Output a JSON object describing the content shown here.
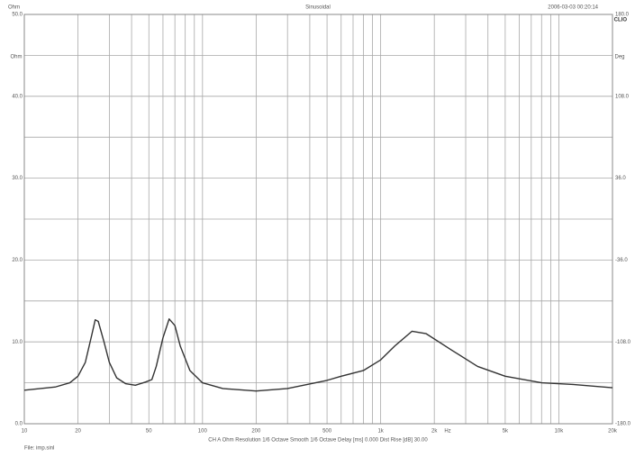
{
  "chart_data": {
    "type": "line",
    "title": "Sinusoidal",
    "timestamp": "2006-03-03 00:20:14",
    "brand": "CLIO",
    "y_label": "Ohm",
    "y2_label": "Deg",
    "x_label": "Hz",
    "footer": "CH A   Ohm   Resolution 1/6 Octave   Smooth 1/6 Octave   Delay [ms] 0.000   Dist Rise [dB] 30.00",
    "file": "File: imp.sinl",
    "log_x": true,
    "grid": true,
    "xlim": [
      10,
      20000
    ],
    "xticks": [
      10,
      20,
      50,
      100,
      200,
      500,
      {
        "value": 1000,
        "label": "1k"
      },
      {
        "value": 2000,
        "label": "2k"
      },
      {
        "value": 5000,
        "label": "5k"
      },
      {
        "value": 10000,
        "label": "10k"
      },
      {
        "value": 20000,
        "label": "20k"
      }
    ],
    "ylim": [
      0,
      50
    ],
    "yticks": [
      {
        "value": 0,
        "label": "0.0"
      },
      {
        "value": 10,
        "label": "10.0"
      },
      {
        "value": 20,
        "label": "20.0"
      },
      {
        "value": 30,
        "label": "30.0"
      },
      {
        "value": 40,
        "label": "40.0"
      },
      {
        "value": 50,
        "label": "50.0"
      }
    ],
    "y2lim": [
      -180,
      180
    ],
    "y2ticks": [
      {
        "value": -180,
        "label": "-180.0"
      },
      {
        "value": -108,
        "label": "-108.0"
      },
      {
        "value": -36,
        "label": "-36.0"
      },
      {
        "value": 36,
        "label": "36.0"
      },
      {
        "value": 108,
        "label": "108.0"
      },
      {
        "value": 180,
        "label": "180.0"
      }
    ],
    "x": [
      10,
      15,
      18,
      20,
      22,
      24,
      25,
      26,
      28,
      30,
      33,
      37,
      42,
      48,
      52,
      55,
      60,
      65,
      70,
      75,
      85,
      100,
      130,
      200,
      300,
      500,
      600,
      800,
      1000,
      1200,
      1500,
      1800,
      2500,
      3500,
      5000,
      8000,
      12000,
      20000
    ],
    "series": [
      {
        "color": "#333333",
        "values": [
          4.1,
          4.5,
          5.0,
          5.8,
          7.5,
          11.0,
          12.7,
          12.5,
          10.0,
          7.5,
          5.6,
          4.9,
          4.7,
          5.1,
          5.4,
          7.0,
          10.5,
          12.8,
          12.0,
          9.5,
          6.5,
          5.0,
          4.3,
          4.0,
          4.3,
          5.3,
          5.8,
          6.5,
          7.8,
          9.5,
          11.3,
          11.0,
          9.0,
          7.0,
          5.8,
          5.0,
          4.8,
          4.4
        ]
      }
    ]
  }
}
